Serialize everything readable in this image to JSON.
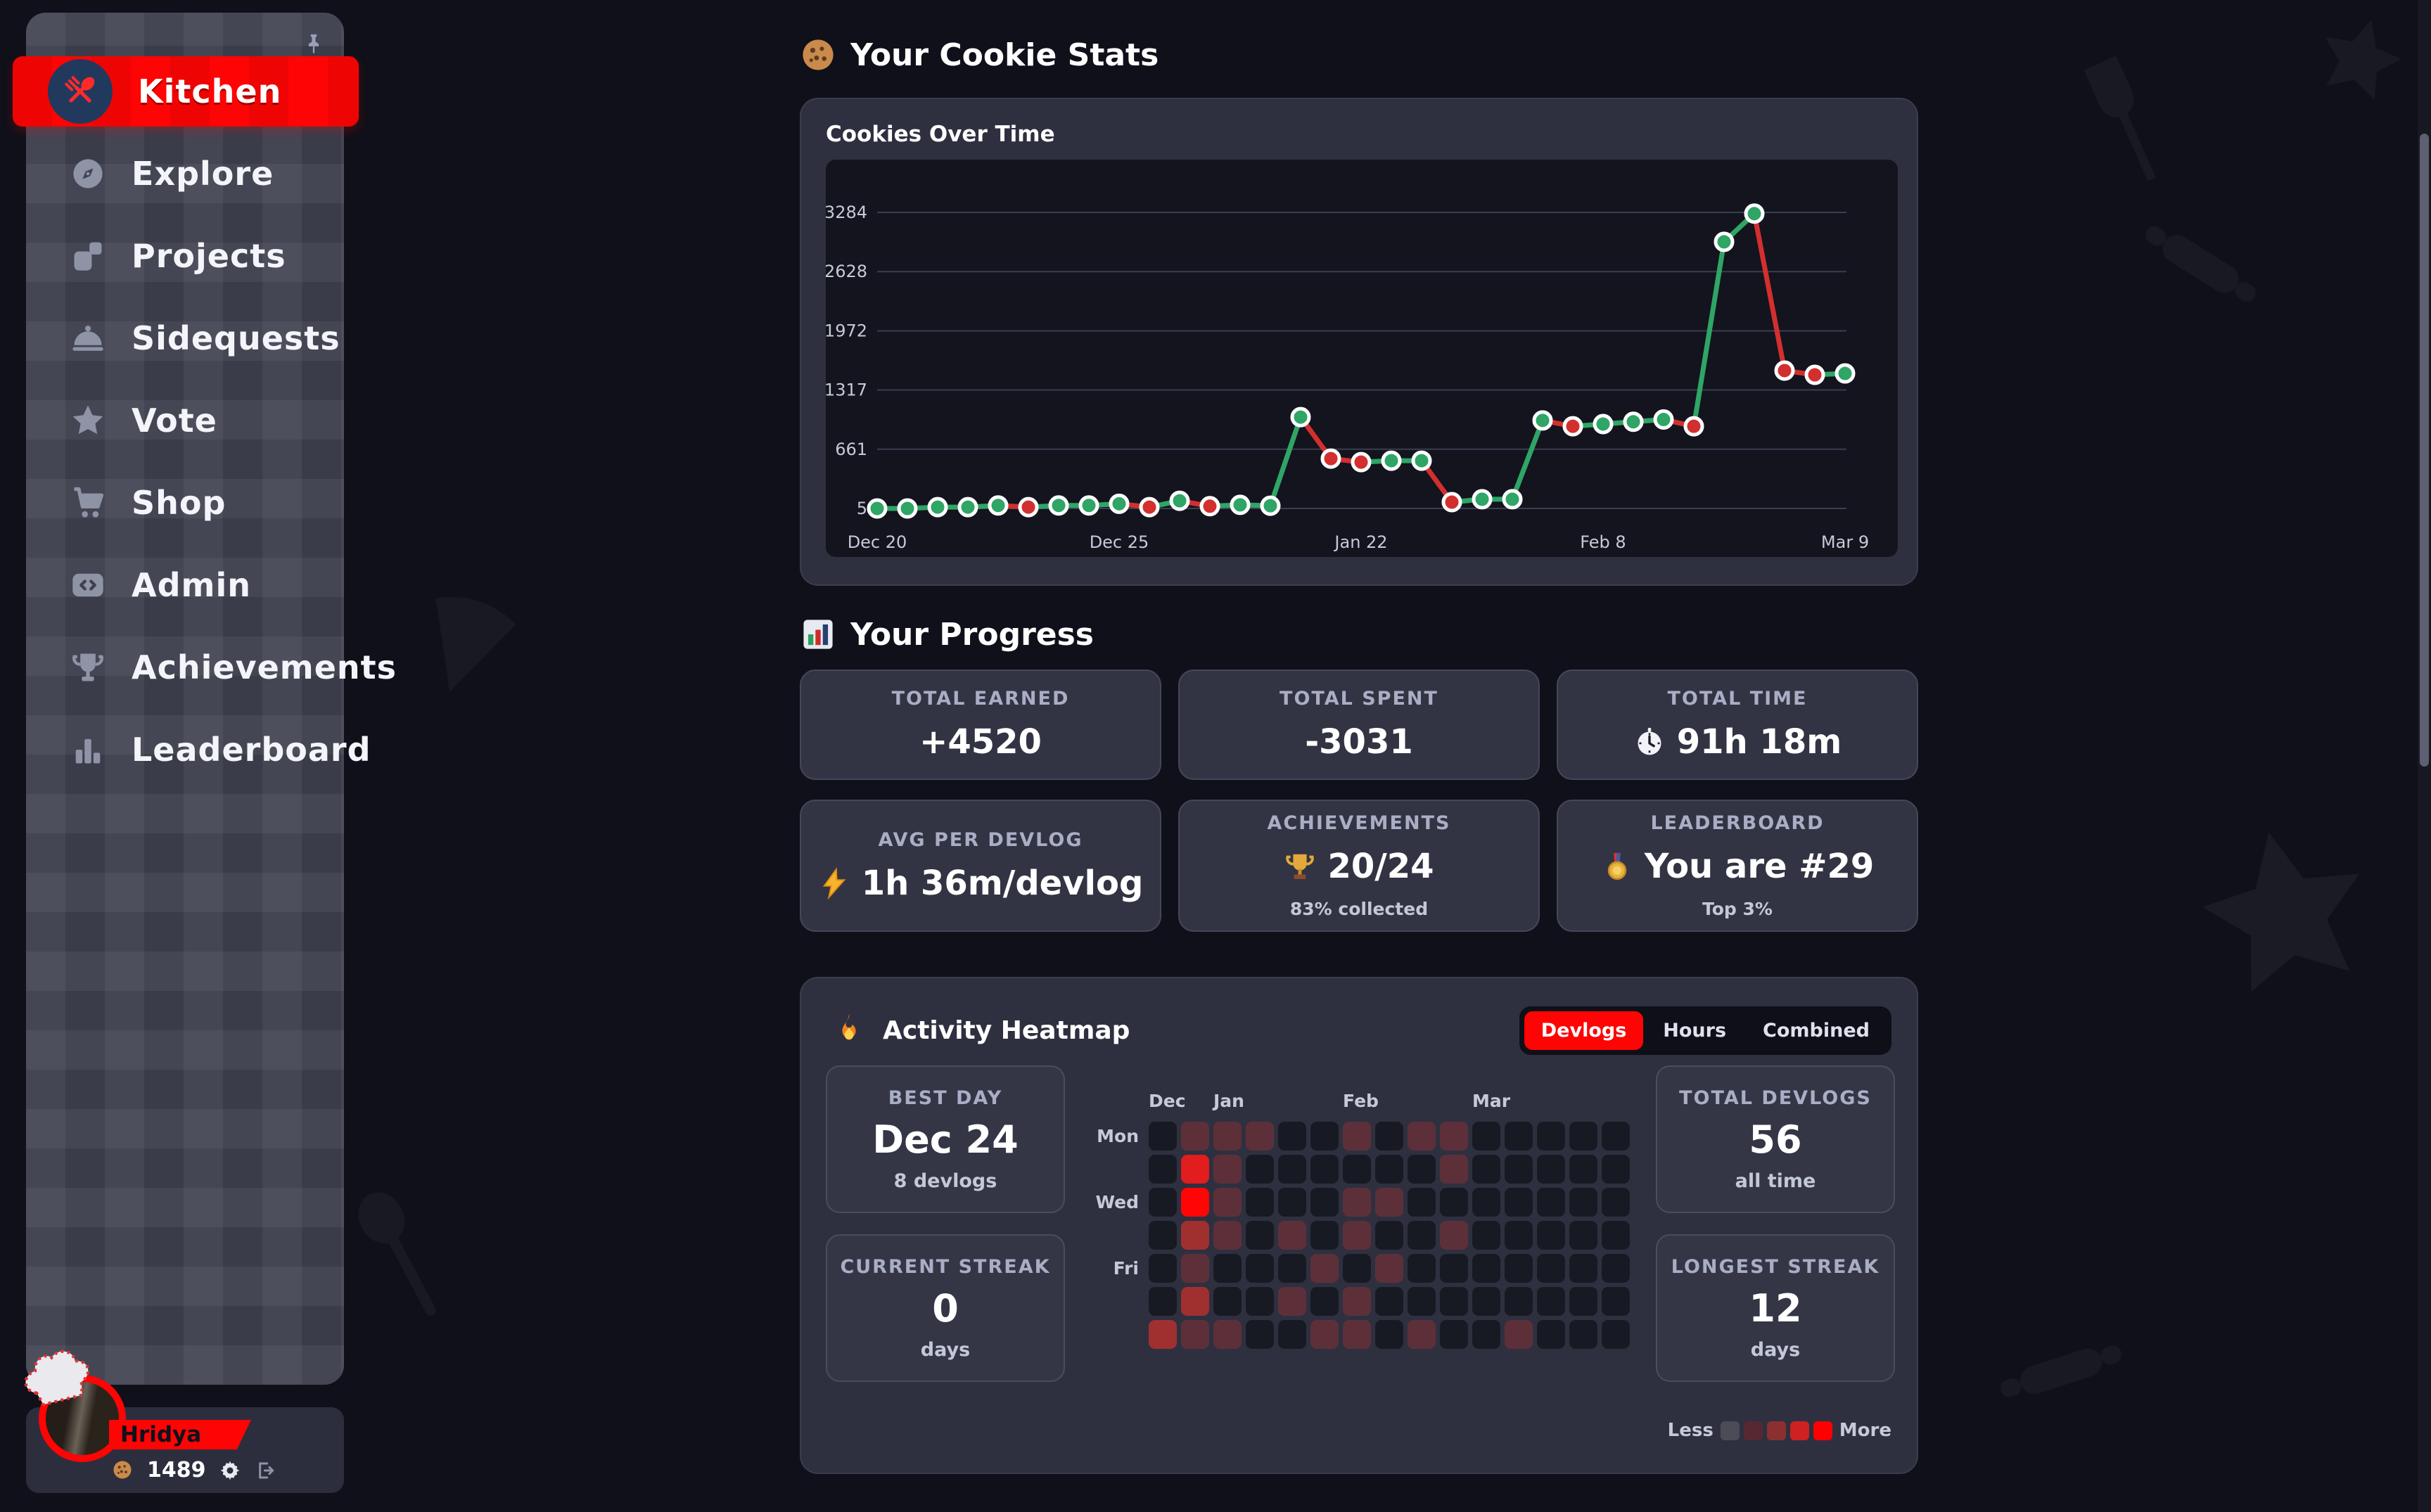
{
  "header": {
    "emoji": "🍪",
    "title": "Your Cookie Stats"
  },
  "chart_data": {
    "type": "line",
    "title": "Cookies Over Time",
    "xlabel": "",
    "ylabel": "",
    "grid": true,
    "legend": false,
    "ylim": [
      5,
      3284
    ],
    "y_ticks": [
      5,
      661,
      1317,
      1972,
      2628,
      3284
    ],
    "x_tick_labels": [
      "Dec 20",
      "Dec 25",
      "Jan 22",
      "Feb 8",
      "Mar 9"
    ],
    "x_tick_indices": [
      0,
      8,
      16,
      24,
      32
    ],
    "colors": {
      "green": "#2fa566",
      "red": "#d32f2f"
    },
    "points": [
      {
        "v": 5,
        "c": "green"
      },
      {
        "v": 5,
        "c": "green"
      },
      {
        "v": 20,
        "c": "green"
      },
      {
        "v": 20,
        "c": "green"
      },
      {
        "v": 38,
        "c": "green"
      },
      {
        "v": 20,
        "c": "red"
      },
      {
        "v": 38,
        "c": "green"
      },
      {
        "v": 38,
        "c": "green"
      },
      {
        "v": 57,
        "c": "green"
      },
      {
        "v": 20,
        "c": "red"
      },
      {
        "v": 90,
        "c": "green"
      },
      {
        "v": 30,
        "c": "red"
      },
      {
        "v": 45,
        "c": "green"
      },
      {
        "v": 35,
        "c": "green"
      },
      {
        "v": 1017,
        "c": "green"
      },
      {
        "v": 557,
        "c": "red"
      },
      {
        "v": 518,
        "c": "red"
      },
      {
        "v": 534,
        "c": "green"
      },
      {
        "v": 534,
        "c": "green"
      },
      {
        "v": 75,
        "c": "red"
      },
      {
        "v": 107,
        "c": "green"
      },
      {
        "v": 107,
        "c": "green"
      },
      {
        "v": 980,
        "c": "green"
      },
      {
        "v": 915,
        "c": "red"
      },
      {
        "v": 940,
        "c": "green"
      },
      {
        "v": 965,
        "c": "green"
      },
      {
        "v": 990,
        "c": "green"
      },
      {
        "v": 915,
        "c": "red"
      },
      {
        "v": 2958,
        "c": "green"
      },
      {
        "v": 3270,
        "c": "green"
      },
      {
        "v": 1532,
        "c": "red"
      },
      {
        "v": 1485,
        "c": "red"
      },
      {
        "v": 1500,
        "c": "green"
      }
    ]
  },
  "progress": {
    "emoji": "📊",
    "heading": "Your Progress",
    "cards": [
      {
        "label": "TOTAL EARNED",
        "icon": null,
        "value": "+4520",
        "sub": null
      },
      {
        "label": "TOTAL SPENT",
        "icon": null,
        "value": "-3031",
        "sub": null
      },
      {
        "label": "TOTAL TIME",
        "icon": "clock-icon",
        "emoji": "⏱",
        "value": "91h 18m",
        "sub": null
      },
      {
        "label": "AVG PER DEVLOG",
        "icon": "lightning-icon",
        "emoji": "⚡",
        "value": "1h 36m/devlog",
        "sub": null
      },
      {
        "label": "ACHIEVEMENTS",
        "icon": "trophy-icon",
        "emoji": "🏆",
        "value": "20/24",
        "sub": "83% collected"
      },
      {
        "label": "LEADERBOARD",
        "icon": "medal-icon",
        "emoji": "🥇",
        "value": "You are #29",
        "sub": "Top 3%"
      }
    ]
  },
  "heatmap": {
    "emoji": "🔥",
    "title": "Activity Heatmap",
    "tabs": [
      {
        "label": "Devlogs",
        "active": true
      },
      {
        "label": "Hours",
        "active": false
      },
      {
        "label": "Combined",
        "active": false
      }
    ],
    "stats": [
      {
        "label": "BEST DAY",
        "value": "Dec 24",
        "sub": "8 devlogs",
        "side": "left"
      },
      {
        "label": "CURRENT STREAK",
        "value": "0",
        "sub": "days",
        "side": "left"
      },
      {
        "label": "TOTAL DEVLOGS",
        "value": "56",
        "sub": "all time",
        "side": "right"
      },
      {
        "label": "LONGEST STREAK",
        "value": "12",
        "sub": "days",
        "side": "right"
      }
    ],
    "month_labels": [
      {
        "col": 0,
        "label": "Dec"
      },
      {
        "col": 2,
        "label": "Jan"
      },
      {
        "col": 6,
        "label": "Feb"
      },
      {
        "col": 10,
        "label": "Mar"
      }
    ],
    "day_labels": [
      {
        "row": 0,
        "label": "Mon"
      },
      {
        "row": 2,
        "label": "Wed"
      },
      {
        "row": 4,
        "label": "Fri"
      }
    ],
    "level_colors": [
      "#181a23",
      "#5d3039",
      "#a03030",
      "#e11d1d",
      "#ff0505"
    ],
    "grid": [
      [
        0,
        1,
        1,
        1,
        0,
        0,
        1,
        0,
        1,
        1,
        0,
        0,
        0,
        0,
        0
      ],
      [
        0,
        3,
        1,
        0,
        0,
        0,
        0,
        0,
        0,
        1,
        0,
        0,
        0,
        0,
        0
      ],
      [
        0,
        4,
        1,
        0,
        0,
        0,
        1,
        1,
        0,
        0,
        0,
        0,
        0,
        0,
        0
      ],
      [
        0,
        2,
        1,
        0,
        1,
        0,
        1,
        0,
        0,
        1,
        0,
        0,
        0,
        0,
        0
      ],
      [
        0,
        1,
        0,
        0,
        0,
        1,
        0,
        1,
        0,
        0,
        0,
        0,
        0,
        0,
        0
      ],
      [
        0,
        2,
        0,
        0,
        1,
        0,
        1,
        0,
        0,
        0,
        0,
        0,
        0,
        0,
        0
      ],
      [
        2,
        1,
        1,
        0,
        0,
        1,
        1,
        0,
        1,
        0,
        0,
        1,
        0,
        0,
        0
      ]
    ],
    "legend": {
      "less": "Less",
      "more": "More",
      "colors": [
        "#4b4c57",
        "#572832",
        "#8c2f2f",
        "#cf2121",
        "#ff0000"
      ]
    }
  },
  "sidebar": {
    "items": [
      {
        "label": "Kitchen",
        "icon": "kitchen-icon",
        "active": true
      },
      {
        "label": "Explore",
        "icon": "compass-icon",
        "active": false
      },
      {
        "label": "Projects",
        "icon": "projects-icon",
        "active": false
      },
      {
        "label": "Sidequests",
        "icon": "cloche-icon",
        "active": false
      },
      {
        "label": "Vote",
        "icon": "star-icon",
        "active": false
      },
      {
        "label": "Shop",
        "icon": "cart-icon",
        "active": false
      },
      {
        "label": "Admin",
        "icon": "code-icon",
        "active": false
      },
      {
        "label": "Achievements",
        "icon": "trophy-outline-icon",
        "active": false
      },
      {
        "label": "Leaderboard",
        "icon": "bars-icon",
        "active": false
      }
    ]
  },
  "user": {
    "name": "Hridya",
    "cookies": "1489"
  },
  "colors": {
    "accent_red": "#fe0404",
    "chart_green": "#2fa566",
    "chart_red": "#d32f2f",
    "page_bg": "#0f1019",
    "card_bg": "#2e3040"
  }
}
